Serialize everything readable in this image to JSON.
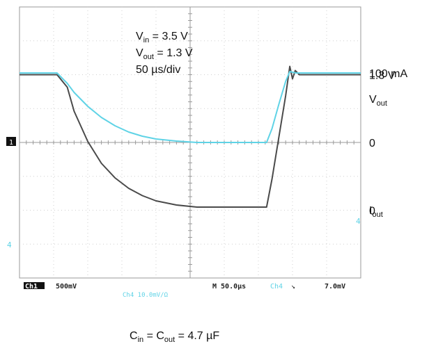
{
  "chart_data": {
    "type": "line",
    "grid": true,
    "x_unit": "µs",
    "x_range": [
      0,
      500
    ],
    "conditions": {
      "vin": {
        "sym": "V",
        "sub": "in",
        "rest": " = 3.5 V"
      },
      "vout": {
        "sym": "V",
        "sub": "out",
        "rest": " = 1.3 V"
      },
      "timebase": "50 µs/div"
    },
    "series": [
      {
        "name": "Vout",
        "label_sym": "V",
        "label_sub": "out",
        "color": "#4a4a4a",
        "unit": "V",
        "range": [
          -0.65,
          1.95
        ],
        "level_labels": [
          {
            "text": "1.3 V",
            "value": 1.3
          },
          {
            "text": "0",
            "value": 0
          }
        ],
        "points": [
          [
            0,
            1.3
          ],
          [
            55,
            1.3
          ],
          [
            70,
            1.18
          ],
          [
            80,
            0.95
          ],
          [
            100,
            0.66
          ],
          [
            120,
            0.45
          ],
          [
            140,
            0.31
          ],
          [
            160,
            0.21
          ],
          [
            180,
            0.14
          ],
          [
            200,
            0.09
          ],
          [
            230,
            0.05
          ],
          [
            260,
            0.03
          ],
          [
            300,
            0.03
          ],
          [
            362,
            0.03
          ],
          [
            370,
            0.3
          ],
          [
            380,
            0.7
          ],
          [
            390,
            1.1
          ],
          [
            396,
            1.38
          ],
          [
            400,
            1.26
          ],
          [
            404,
            1.34
          ],
          [
            410,
            1.3
          ],
          [
            500,
            1.3
          ]
        ]
      },
      {
        "name": "Iout",
        "label_sym": "I",
        "label_sub": "out",
        "color": "#5fd3e6",
        "unit": "mA",
        "range": [
          -195,
          195
        ],
        "level_labels": [
          {
            "text": "100 mA",
            "value": 100
          },
          {
            "text": "0",
            "value": 0
          }
        ],
        "points": [
          [
            0,
            100
          ],
          [
            55,
            100
          ],
          [
            70,
            85
          ],
          [
            80,
            72
          ],
          [
            100,
            52
          ],
          [
            120,
            36
          ],
          [
            140,
            24
          ],
          [
            160,
            15
          ],
          [
            180,
            9
          ],
          [
            200,
            5
          ],
          [
            230,
            2
          ],
          [
            260,
            0
          ],
          [
            300,
            0
          ],
          [
            362,
            0
          ],
          [
            370,
            20
          ],
          [
            380,
            55
          ],
          [
            390,
            88
          ],
          [
            396,
            102
          ],
          [
            405,
            100
          ],
          [
            500,
            100
          ]
        ]
      }
    ]
  },
  "markers": {
    "ch1_ground": "1",
    "ch4_ground": "4",
    "ch4_trigger": "4"
  },
  "scope_readout": {
    "ch1": "Ch1",
    "ch1_scale": "500mV",
    "ch4_scale_row": "Ch4  10.0mV/Ω",
    "timebase": "M 50.0µs",
    "trigger_channel": "Ch4",
    "trigger_slope": "↘",
    "trigger_level": "7.0mV"
  },
  "caption": {
    "sym1": "C",
    "sub1": "in",
    "middle": " = C",
    "sub2": "out",
    "rest": " = 4.7 µF"
  }
}
